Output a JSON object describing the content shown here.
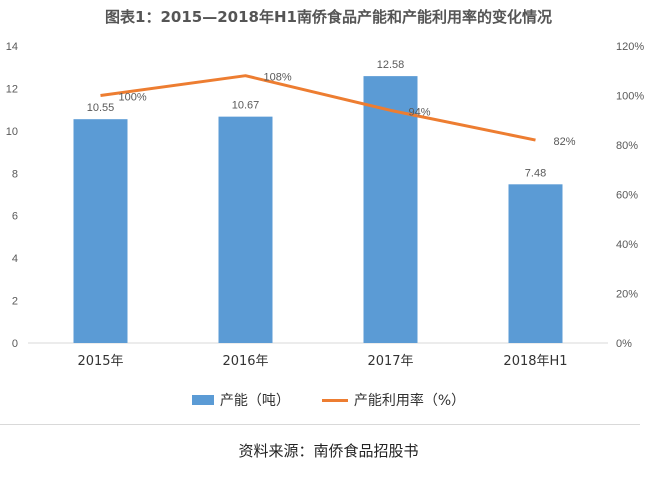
{
  "title": "图表1：2015—2018年H1南侨食品产能和产能利用率的变化情况",
  "source": "资料来源：南侨食品招股书",
  "colors": {
    "bar": "#5b9bd5",
    "line": "#ed7d31",
    "text": "#595959",
    "grid": "#d9d9d9"
  },
  "chart_data": {
    "type": "bar",
    "title": "图表1：2015—2018年H1南侨食品产能和产能利用率的变化情况",
    "categories": [
      "2015年",
      "2016年",
      "2017年",
      "2018年H1"
    ],
    "series": [
      {
        "name": "产能（吨）",
        "type": "bar",
        "axis": "left",
        "values": [
          10.55,
          10.67,
          12.58,
          7.48
        ],
        "labels": [
          "10.55",
          "10.67",
          "12.58",
          "7.48"
        ]
      },
      {
        "name": "产能利用率（%）",
        "type": "line",
        "axis": "right",
        "values": [
          100,
          108,
          94,
          82
        ],
        "labels": [
          "100%",
          "108%",
          "94%",
          "82%"
        ]
      }
    ],
    "y_left": {
      "min": 0,
      "max": 14,
      "step": 2,
      "ticks": [
        "0",
        "2",
        "4",
        "6",
        "8",
        "10",
        "12",
        "14"
      ]
    },
    "y_right": {
      "min": 0,
      "max": 120,
      "step": 20,
      "ticks": [
        "0%",
        "20%",
        "40%",
        "60%",
        "80%",
        "100%",
        "120%"
      ]
    },
    "legend_position": "bottom",
    "grid": false
  }
}
